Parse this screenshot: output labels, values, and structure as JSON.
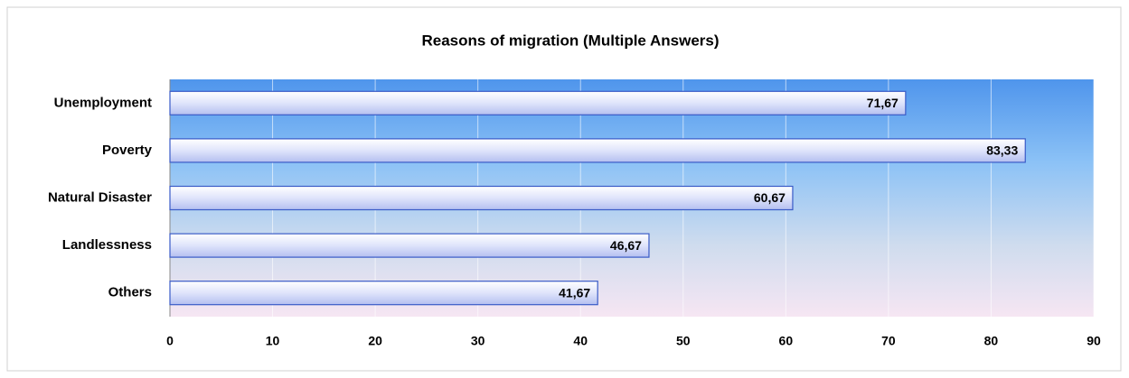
{
  "chart_data": {
    "type": "barh",
    "title": "Reasons of migration (Multiple Answers)",
    "categories": [
      "Unemployment",
      "Poverty",
      "Natural Disaster",
      "Landlessness",
      "Others"
    ],
    "values": [
      71.67,
      83.33,
      60.67,
      46.67,
      41.67
    ],
    "value_labels": [
      "71,67",
      "83,33",
      "60,67",
      "46,67",
      "41,67"
    ],
    "xlim": [
      0,
      90
    ],
    "xticks": [
      0,
      10,
      20,
      30,
      40,
      50,
      60,
      70,
      80,
      90
    ],
    "grid": true
  }
}
